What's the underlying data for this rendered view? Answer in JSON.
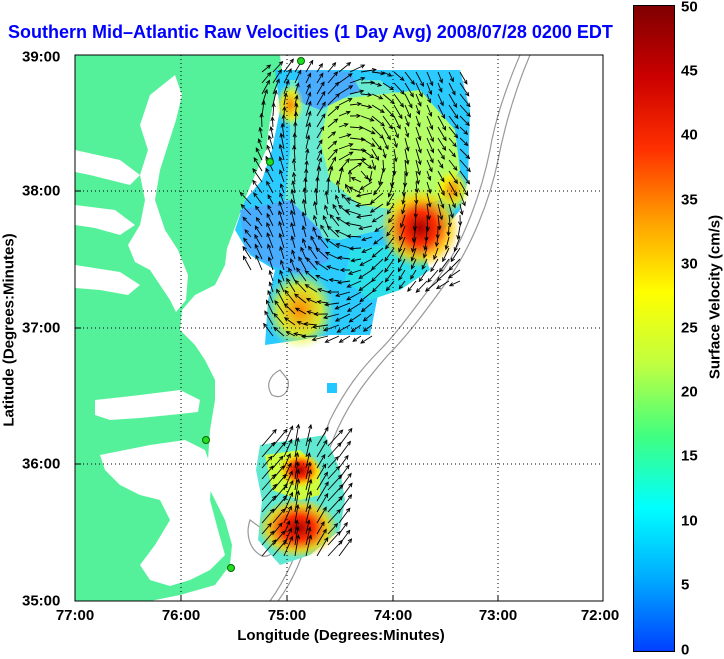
{
  "title": "Southern Mid–Atlantic Raw Velocities (1 Day Avg) 2008/07/28 0200 EDT",
  "x_axis": {
    "label": "Longitude (Degrees:Minutes)",
    "ticks": [
      "77:00",
      "76:00",
      "75:00",
      "74:00",
      "73:00",
      "72:00"
    ]
  },
  "y_axis": {
    "label": "Latitude (Degrees:Minutes)",
    "ticks": [
      "39:00",
      "38:00",
      "37:00",
      "36:00",
      "35:00"
    ]
  },
  "colorbar": {
    "label": "Surface Velocity (cm/s)",
    "ticks": [
      "50",
      "45",
      "40",
      "35",
      "30",
      "25",
      "20",
      "15",
      "10",
      "5",
      "0"
    ],
    "min": 0,
    "max": 50,
    "colors": [
      "#0040ff",
      "#00aaff",
      "#00ffff",
      "#40ff80",
      "#c0ff40",
      "#ffff00",
      "#ffa000",
      "#ff3000",
      "#cc0000",
      "#800000"
    ]
  },
  "colors": {
    "land": "#55f09a",
    "water": "#ffffff",
    "bathymetry": "#999999",
    "station": "#22dd22",
    "vector": "#000000",
    "title": "#0000ff"
  },
  "map": {
    "lon_range": [
      -77,
      -72
    ],
    "lat_range": [
      35,
      39
    ],
    "grid": "dotted"
  }
}
